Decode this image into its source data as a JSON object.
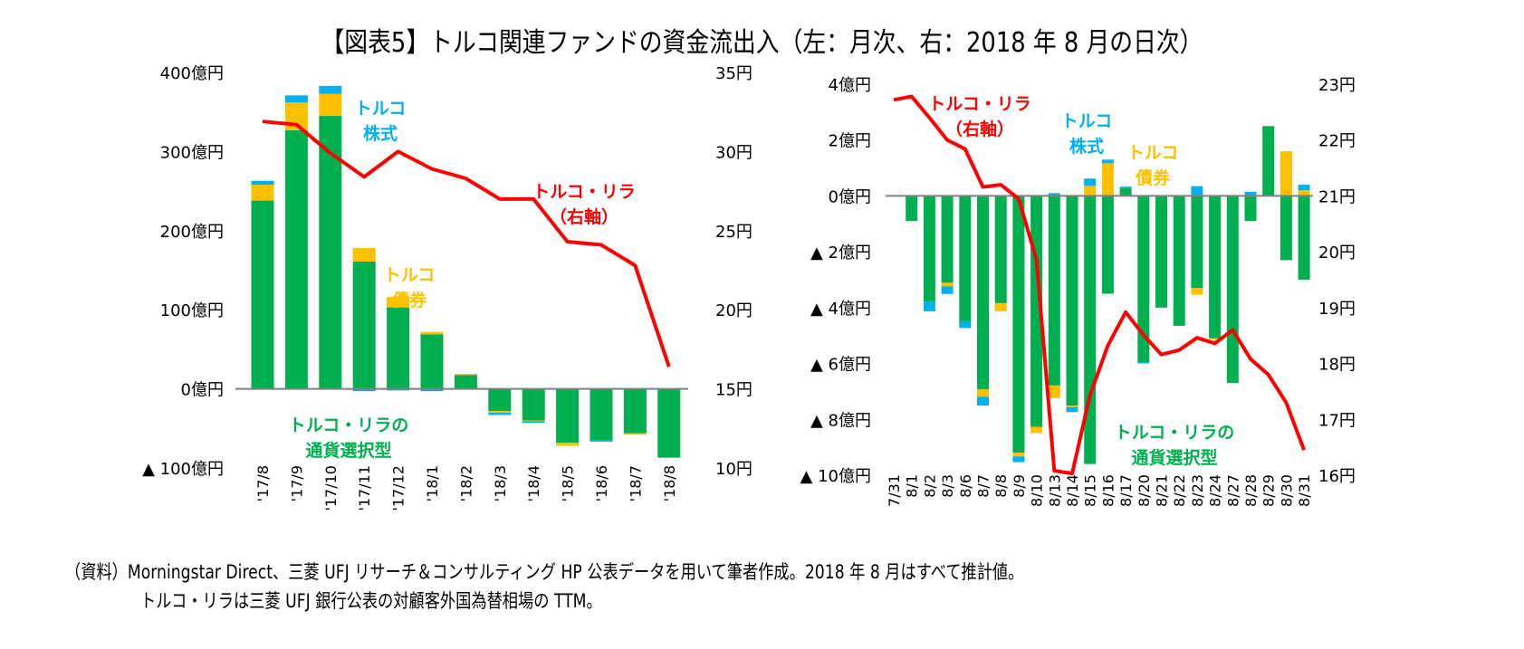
{
  "title": "【図表5】トルコ関連ファンドの資金流出入（左：月次、右：2018 年 8 月の日次）",
  "notes": [
    "（資料）Morningstar Direct、三菱 UFJ リサーチ＆コンサルティング HP 公表データを用いて筆者作成。2018 年 8 月はすべて推計値。",
    "トルコ・リラは三菱 UFJ 銀行公表の対顧客外国為替相場の TTM。"
  ],
  "colors": {
    "currency": "#00b050",
    "bond": "#ffc000",
    "equity": "#00b0f0",
    "lira": "#ff0000",
    "zero_line": "#808080"
  },
  "chart_data": [
    {
      "type": "bar",
      "stacked": true,
      "categories": [
        "'17/8",
        "'17/9",
        "'17/10",
        "'17/11",
        "'17/12",
        "'18/1",
        "'18/2",
        "'18/3",
        "'18/4",
        "'18/5",
        "'18/6",
        "'18/7",
        "'18/8"
      ],
      "series": [
        {
          "name": "トルコ・リラの通貨選択型",
          "axis": "left",
          "color": "#00b050",
          "values": [
            238,
            327,
            345,
            161,
            103,
            69,
            18,
            -28,
            -40,
            -68,
            -65,
            -56,
            -87
          ]
        },
        {
          "name": "トルコ債券",
          "axis": "left",
          "color": "#ffc000",
          "values": [
            20,
            35,
            28,
            17,
            13,
            3,
            1,
            -2,
            -1,
            -4,
            0,
            -2,
            0
          ]
        },
        {
          "name": "トルコ株式",
          "axis": "left",
          "color": "#00b0f0",
          "values": [
            5,
            9,
            10,
            -3,
            -2,
            -3,
            0,
            -3,
            -2,
            0,
            -1,
            0,
            0
          ]
        },
        {
          "name": "トルコ・リラ（右軸）",
          "type": "line",
          "axis": "right",
          "color": "#ff0000",
          "values": [
            31.9,
            31.7,
            29.9,
            28.4,
            30.0,
            28.9,
            28.3,
            27.0,
            27.0,
            24.3,
            24.1,
            22.8,
            16.4
          ]
        }
      ],
      "yleft": {
        "lim": [
          -100,
          400
        ],
        "ticks": [
          400,
          300,
          200,
          100,
          0,
          -100
        ],
        "tick_labels": [
          "400億円",
          "300億円",
          "200億円",
          "100億円",
          "0億円",
          "▲ 100億円"
        ]
      },
      "yright": {
        "lim": [
          10,
          35
        ],
        "ticks": [
          35,
          30,
          25,
          20,
          15,
          10
        ],
        "tick_labels": [
          "35円",
          "30円",
          "25円",
          "20円",
          "15円",
          "10円"
        ]
      },
      "annotations": [
        {
          "text": [
            "トルコ",
            "株式"
          ],
          "color": "#00b0f0"
        },
        {
          "text": [
            "トルコ",
            "債券"
          ],
          "color": "#ffc000"
        },
        {
          "text": [
            "トルコ・リラ",
            "（右軸）"
          ],
          "color": "#ff0000"
        },
        {
          "text": [
            "トルコ・リラの",
            "通貨選択型"
          ],
          "color": "#00b050"
        }
      ],
      "grid": false
    },
    {
      "type": "bar",
      "stacked": true,
      "categories": [
        "7/31",
        "8/1",
        "8/2",
        "8/3",
        "8/6",
        "8/7",
        "8/8",
        "8/9",
        "8/10",
        "8/13",
        "8/14",
        "8/15",
        "8/16",
        "8/17",
        "8/20",
        "8/21",
        "8/22",
        "8/23",
        "8/24",
        "8/27",
        "8/28",
        "8/29",
        "8/30",
        "8/31"
      ],
      "series": [
        {
          "name": "トルコ・リラの通貨選択型",
          "axis": "left",
          "color": "#00b050",
          "values": [
            0,
            -0.9,
            -3.78,
            -3.11,
            -4.49,
            -6.92,
            -3.84,
            -9.19,
            -8.27,
            -6.79,
            -7.51,
            -9.6,
            -3.5,
            0.27,
            -5.95,
            -4.0,
            -4.65,
            -3.3,
            -5.1,
            -6.7,
            -0.9,
            2.5,
            -2.3,
            -3.0
          ]
        },
        {
          "name": "トルコ債券",
          "axis": "left",
          "color": "#ffc000",
          "values": [
            0,
            0,
            0,
            -0.13,
            0,
            -0.27,
            -0.29,
            -0.14,
            -0.22,
            -0.45,
            -0.05,
            0.36,
            1.17,
            0,
            0,
            0,
            0,
            -0.24,
            -0.05,
            0,
            0,
            0,
            1.6,
            0.2
          ]
        },
        {
          "name": "トルコ株式",
          "axis": "left",
          "color": "#00b0f0",
          "values": [
            0,
            0,
            -0.35,
            -0.27,
            -0.24,
            -0.32,
            0,
            -0.2,
            0,
            0.1,
            -0.18,
            0.26,
            0.13,
            0.06,
            -0.03,
            0,
            0,
            0.35,
            0,
            0,
            0.15,
            0,
            0,
            0.2
          ]
        },
        {
          "name": "トルコ・リラ（右軸）",
          "type": "line",
          "axis": "right",
          "color": "#ff0000",
          "values": [
            22.72,
            22.78,
            22.4,
            22.0,
            21.84,
            21.16,
            21.2,
            20.95,
            19.86,
            16.08,
            16.03,
            17.43,
            18.32,
            18.92,
            18.51,
            18.16,
            18.24,
            18.46,
            18.36,
            18.6,
            18.08,
            17.8,
            17.3,
            16.45
          ]
        }
      ],
      "yleft": {
        "lim": [
          -10,
          4
        ],
        "ticks": [
          4,
          2,
          0,
          -2,
          -4,
          -6,
          -8,
          -10
        ],
        "tick_labels": [
          "4億円",
          "2億円",
          "0億円",
          "▲ 2億円",
          "▲ 4億円",
          "▲ 6億円",
          "▲ 8億円",
          "▲ 10億円"
        ]
      },
      "yright": {
        "lim": [
          16,
          23
        ],
        "ticks": [
          23,
          22,
          21,
          20,
          19,
          18,
          17,
          16
        ],
        "tick_labels": [
          "23円",
          "22円",
          "21円",
          "20円",
          "19円",
          "18円",
          "17円",
          "16円"
        ]
      },
      "annotations": [
        {
          "text": [
            "トルコ・リラ",
            "（右軸）"
          ],
          "color": "#ff0000"
        },
        {
          "text": [
            "トルコ",
            "株式"
          ],
          "color": "#00b0f0"
        },
        {
          "text": [
            "トルコ",
            "債券"
          ],
          "color": "#ffc000"
        },
        {
          "text": [
            "トルコ・リラの",
            "通貨選択型"
          ],
          "color": "#00b050"
        }
      ],
      "grid": false
    }
  ]
}
